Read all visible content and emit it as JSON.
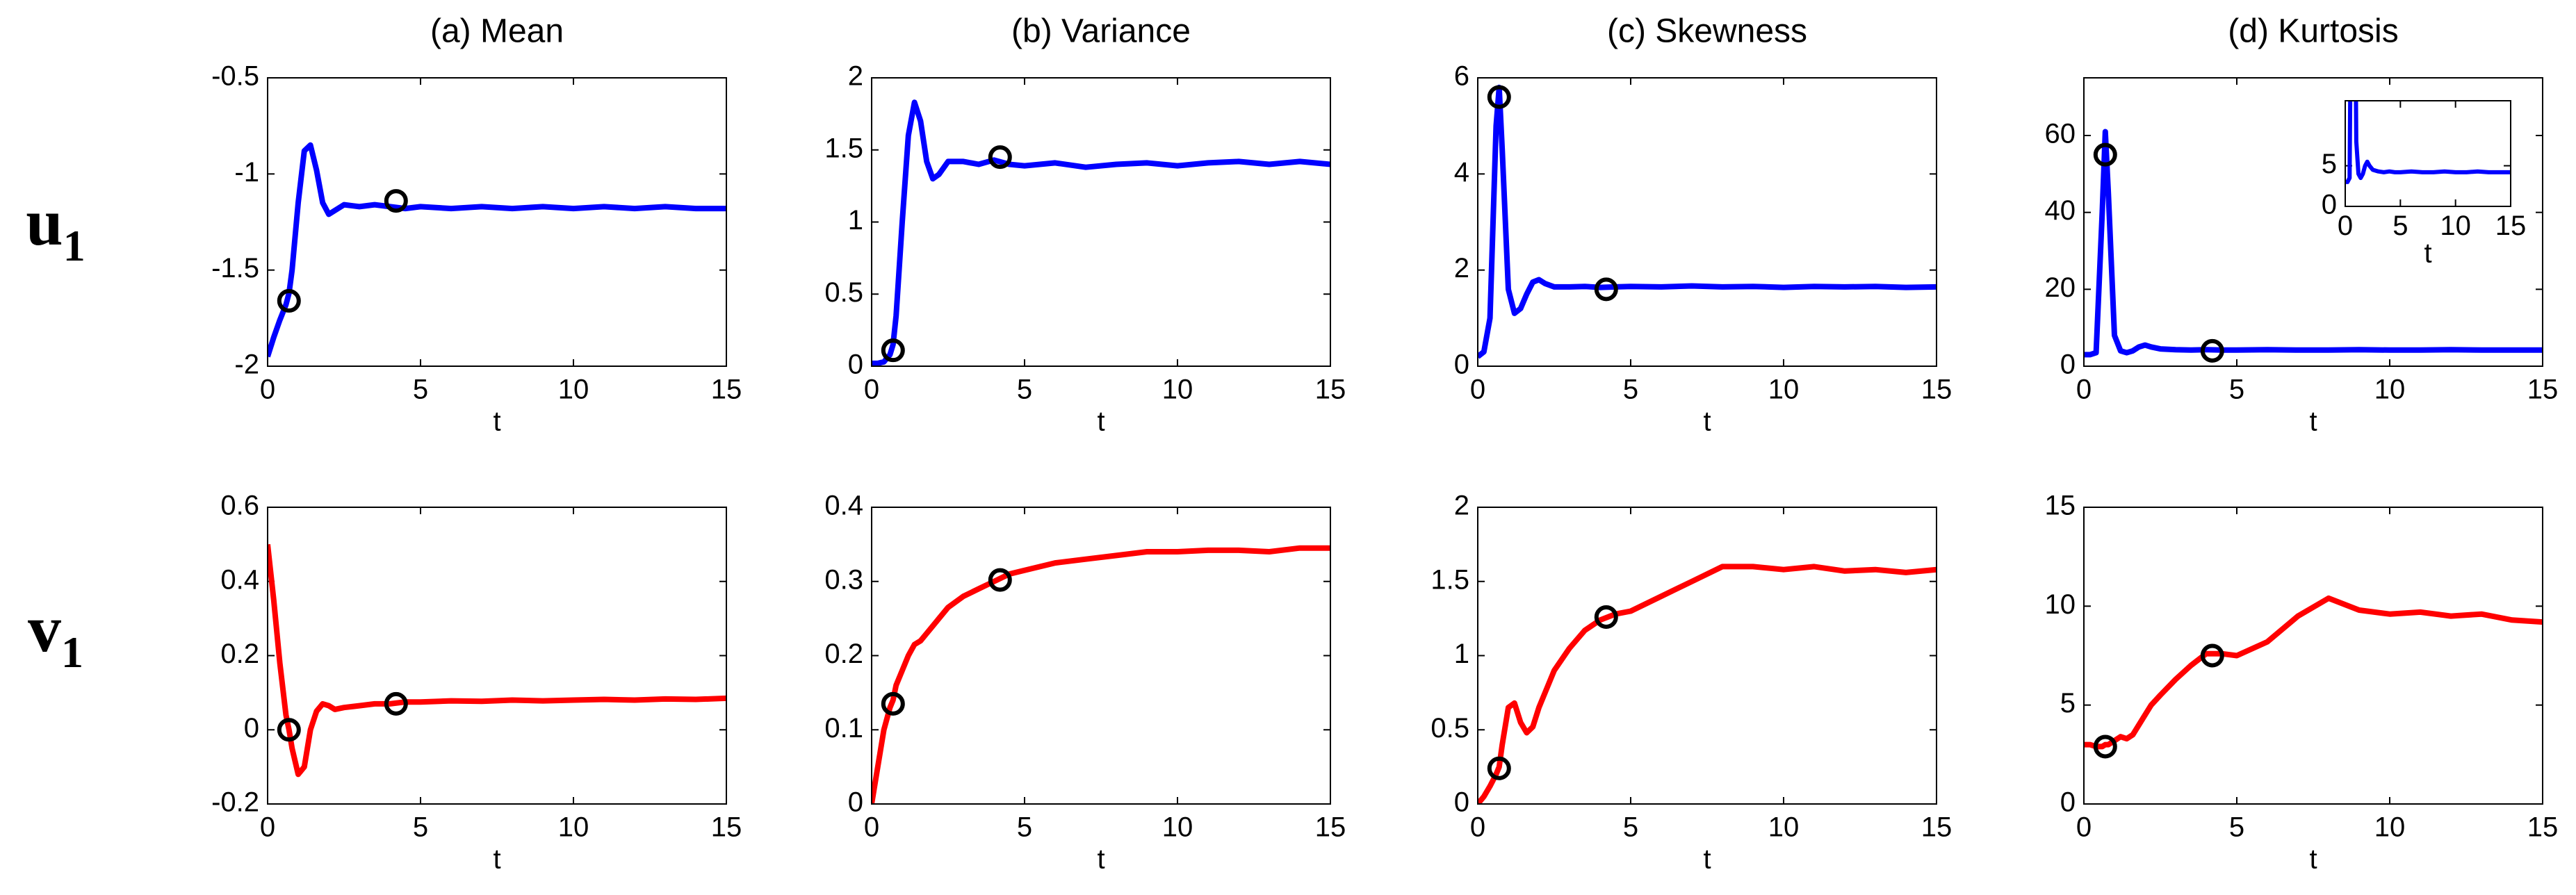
{
  "row_labels": [
    {
      "symbol": "u",
      "subscript": "1"
    },
    {
      "symbol": "v",
      "subscript": "1"
    }
  ],
  "chart_data": [
    {
      "type": "line",
      "title": "(a) Mean",
      "xlabel": "t",
      "color": "#0000ff",
      "x": [
        0,
        0.2,
        0.4,
        0.6,
        0.7,
        0.8,
        1,
        1.2,
        1.4,
        1.6,
        1.8,
        2,
        2.2,
        2.5,
        3,
        3.5,
        4,
        4.5,
        5,
        6,
        7,
        8,
        9,
        10,
        11,
        12,
        13,
        14,
        15
      ],
      "values": [
        -1.95,
        -1.85,
        -1.76,
        -1.68,
        -1.62,
        -1.5,
        -1.15,
        -0.88,
        -0.85,
        -0.98,
        -1.15,
        -1.21,
        -1.19,
        -1.16,
        -1.17,
        -1.16,
        -1.17,
        -1.18,
        -1.17,
        -1.18,
        -1.17,
        -1.18,
        -1.17,
        -1.18,
        -1.17,
        -1.18,
        -1.17,
        -1.18,
        -1.18
      ],
      "markers": {
        "x": [
          0.7,
          4.2
        ],
        "values": [
          -1.66,
          -1.14
        ]
      },
      "xlim": [
        0,
        15
      ],
      "xticks": [
        0,
        5,
        10,
        15
      ],
      "ylim": [
        -2,
        -0.5
      ],
      "yticks": [
        -2,
        -1.5,
        -1,
        -0.5
      ]
    },
    {
      "type": "line",
      "title": "(b) Variance",
      "xlabel": "t",
      "color": "#0000ff",
      "x": [
        0,
        0.2,
        0.4,
        0.6,
        0.7,
        0.8,
        1,
        1.2,
        1.4,
        1.6,
        1.8,
        2,
        2.2,
        2.5,
        3,
        3.5,
        4,
        4.5,
        5,
        6,
        7,
        8,
        9,
        10,
        11,
        12,
        13,
        14,
        15
      ],
      "values": [
        0.02,
        0.02,
        0.03,
        0.08,
        0.15,
        0.35,
        1.0,
        1.6,
        1.83,
        1.7,
        1.42,
        1.3,
        1.33,
        1.42,
        1.42,
        1.4,
        1.43,
        1.4,
        1.39,
        1.41,
        1.38,
        1.4,
        1.41,
        1.39,
        1.41,
        1.42,
        1.4,
        1.42,
        1.4
      ],
      "markers": {
        "x": [
          0.7,
          4.2
        ],
        "values": [
          0.11,
          1.45
        ]
      },
      "xlim": [
        0,
        15
      ],
      "xticks": [
        0,
        5,
        10,
        15
      ],
      "ylim": [
        0,
        2
      ],
      "yticks": [
        0,
        0.5,
        1,
        1.5,
        2
      ]
    },
    {
      "type": "line",
      "title": "(c) Skewness",
      "xlabel": "t",
      "color": "#0000ff",
      "x": [
        0,
        0.2,
        0.4,
        0.6,
        0.7,
        0.8,
        1,
        1.2,
        1.4,
        1.6,
        1.8,
        2,
        2.2,
        2.5,
        3,
        3.5,
        4,
        4.5,
        5,
        6,
        7,
        8,
        9,
        10,
        11,
        12,
        13,
        14,
        15
      ],
      "values": [
        0.2,
        0.3,
        1.0,
        5.0,
        5.8,
        4.5,
        1.6,
        1.1,
        1.2,
        1.5,
        1.75,
        1.8,
        1.72,
        1.65,
        1.65,
        1.66,
        1.64,
        1.65,
        1.66,
        1.65,
        1.67,
        1.65,
        1.66,
        1.64,
        1.66,
        1.65,
        1.66,
        1.64,
        1.65
      ],
      "markers": {
        "x": [
          0.7,
          4.2
        ],
        "values": [
          5.6,
          1.6
        ]
      },
      "xlim": [
        0,
        15
      ],
      "xticks": [
        0,
        5,
        10,
        15
      ],
      "ylim": [
        0,
        6
      ],
      "yticks": [
        0,
        2,
        4,
        6
      ]
    },
    {
      "type": "line",
      "title": "(d) Kurtosis",
      "xlabel": "t",
      "color": "#0000ff",
      "x": [
        0,
        0.2,
        0.4,
        0.6,
        0.7,
        0.8,
        1,
        1.2,
        1.4,
        1.6,
        1.8,
        2,
        2.2,
        2.5,
        3,
        3.5,
        4,
        4.5,
        5,
        6,
        7,
        8,
        9,
        10,
        11,
        12,
        13,
        14,
        15
      ],
      "values": [
        3,
        3,
        3.5,
        40,
        61,
        45,
        8,
        4,
        3.5,
        4,
        5,
        5.5,
        5,
        4.5,
        4.3,
        4.2,
        4.3,
        4.2,
        4.2,
        4.3,
        4.2,
        4.2,
        4.3,
        4.2,
        4.2,
        4.3,
        4.2,
        4.2,
        4.2
      ],
      "markers": {
        "x": [
          0.7,
          4.2
        ],
        "values": [
          55,
          4
        ]
      },
      "xlim": [
        0,
        15
      ],
      "xticks": [
        0,
        5,
        10,
        15
      ],
      "ylim": [
        0,
        75
      ],
      "yticks": [
        0,
        20,
        40,
        60
      ],
      "inset": {
        "xlabel": "t",
        "xlim": [
          0,
          15
        ],
        "xticks": [
          0,
          5,
          10,
          15
        ],
        "ylim": [
          0,
          13
        ],
        "yticks": [
          0,
          5
        ]
      }
    },
    {
      "type": "line",
      "xlabel": "t",
      "color": "#ff0000",
      "x": [
        0,
        0.2,
        0.4,
        0.6,
        0.7,
        0.8,
        1,
        1.2,
        1.4,
        1.6,
        1.8,
        2,
        2.2,
        2.5,
        3,
        3.5,
        4,
        4.5,
        5,
        6,
        7,
        8,
        9,
        10,
        11,
        12,
        13,
        14,
        15
      ],
      "values": [
        0.5,
        0.35,
        0.18,
        0.04,
        0,
        -0.05,
        -0.12,
        -0.1,
        0,
        0.05,
        0.07,
        0.065,
        0.055,
        0.06,
        0.065,
        0.07,
        0.07,
        0.075,
        0.075,
        0.078,
        0.077,
        0.08,
        0.078,
        0.08,
        0.082,
        0.08,
        0.083,
        0.082,
        0.085
      ],
      "markers": {
        "x": [
          0.7,
          4.2
        ],
        "values": [
          0,
          0.07
        ]
      },
      "xlim": [
        0,
        15
      ],
      "xticks": [
        0,
        5,
        10,
        15
      ],
      "ylim": [
        -0.2,
        0.6
      ],
      "yticks": [
        -0.2,
        0,
        0.2,
        0.4,
        0.6
      ]
    },
    {
      "type": "line",
      "xlabel": "t",
      "color": "#ff0000",
      "x": [
        0,
        0.2,
        0.4,
        0.6,
        0.7,
        0.8,
        1,
        1.2,
        1.4,
        1.6,
        1.8,
        2,
        2.2,
        2.5,
        3,
        3.5,
        4,
        4.5,
        5,
        6,
        7,
        8,
        9,
        10,
        11,
        12,
        13,
        14,
        15
      ],
      "values": [
        0,
        0.05,
        0.1,
        0.13,
        0.14,
        0.16,
        0.18,
        0.2,
        0.215,
        0.22,
        0.23,
        0.24,
        0.25,
        0.265,
        0.28,
        0.29,
        0.3,
        0.31,
        0.315,
        0.325,
        0.33,
        0.335,
        0.34,
        0.34,
        0.342,
        0.342,
        0.34,
        0.345,
        0.345
      ],
      "markers": {
        "x": [
          0.7,
          4.2
        ],
        "values": [
          0.135,
          0.302
        ]
      },
      "xlim": [
        0,
        15
      ],
      "xticks": [
        0,
        5,
        10,
        15
      ],
      "ylim": [
        0,
        0.4
      ],
      "yticks": [
        0,
        0.1,
        0.2,
        0.3,
        0.4
      ]
    },
    {
      "type": "line",
      "xlabel": "t",
      "color": "#ff0000",
      "x": [
        0,
        0.2,
        0.4,
        0.6,
        0.7,
        0.8,
        1,
        1.2,
        1.4,
        1.6,
        1.8,
        2,
        2.2,
        2.5,
        3,
        3.5,
        4,
        4.5,
        5,
        6,
        7,
        8,
        9,
        10,
        11,
        12,
        13,
        14,
        15
      ],
      "values": [
        0,
        0.05,
        0.12,
        0.2,
        0.25,
        0.4,
        0.65,
        0.68,
        0.55,
        0.48,
        0.52,
        0.65,
        0.75,
        0.9,
        1.05,
        1.17,
        1.24,
        1.28,
        1.3,
        1.4,
        1.5,
        1.6,
        1.6,
        1.58,
        1.6,
        1.57,
        1.58,
        1.56,
        1.58
      ],
      "markers": {
        "x": [
          0.7,
          4.2
        ],
        "values": [
          0.24,
          1.26
        ]
      },
      "xlim": [
        0,
        15
      ],
      "xticks": [
        0,
        5,
        10,
        15
      ],
      "ylim": [
        0,
        2
      ],
      "yticks": [
        0,
        0.5,
        1,
        1.5,
        2
      ]
    },
    {
      "type": "line",
      "xlabel": "t",
      "color": "#ff0000",
      "x": [
        0,
        0.2,
        0.4,
        0.6,
        0.7,
        0.8,
        1,
        1.2,
        1.4,
        1.6,
        1.8,
        2,
        2.2,
        2.5,
        3,
        3.5,
        4,
        4.5,
        5,
        6,
        7,
        8,
        9,
        10,
        11,
        12,
        13,
        14,
        15
      ],
      "values": [
        3,
        3,
        2.9,
        2.9,
        3,
        3,
        3.2,
        3.4,
        3.3,
        3.5,
        4,
        4.5,
        5,
        5.5,
        6.3,
        7,
        7.6,
        7.6,
        7.5,
        8.2,
        9.5,
        10.4,
        9.8,
        9.6,
        9.7,
        9.5,
        9.6,
        9.3,
        9.2
      ],
      "markers": {
        "x": [
          0.7,
          4.2
        ],
        "values": [
          2.9,
          7.5
        ]
      },
      "xlim": [
        0,
        15
      ],
      "xticks": [
        0,
        5,
        10,
        15
      ],
      "ylim": [
        0,
        15
      ],
      "yticks": [
        0,
        5,
        10,
        15
      ]
    }
  ]
}
